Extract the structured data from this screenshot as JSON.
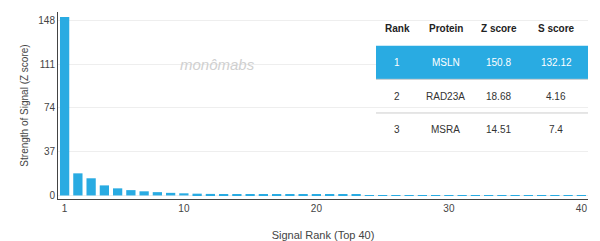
{
  "chart_data": {
    "type": "bar",
    "x": [
      1,
      2,
      3,
      4,
      5,
      6,
      7,
      8,
      9,
      10,
      11,
      12,
      13,
      14,
      15,
      16,
      17,
      18,
      19,
      20,
      21,
      22,
      23,
      24,
      25,
      26,
      27,
      28,
      29,
      30,
      31,
      32,
      33,
      34,
      35,
      36,
      37,
      38,
      39,
      40
    ],
    "values": [
      150.8,
      18.68,
      14.51,
      8.5,
      6.0,
      4.5,
      3.5,
      2.8,
      2.2,
      1.8,
      1.5,
      1.3,
      1.1,
      0.95,
      0.85,
      0.75,
      0.65,
      0.6,
      0.55,
      0.5,
      0.45,
      0.42,
      0.39,
      0.36,
      0.33,
      0.3,
      0.27,
      0.25,
      0.23,
      0.21,
      0.19,
      0.17,
      0.15,
      0.13,
      0.11,
      0.09,
      0.07,
      0.05,
      0.03,
      0.01
    ],
    "color": "#29ABE2",
    "xlabel": "Signal Rank (Top 40)",
    "ylabel": "Strength of Signal (Z score)",
    "xlim": [
      0.5,
      40.5
    ],
    "xticks": [
      1,
      10,
      20,
      30,
      40
    ],
    "ylim": [
      -3,
      155
    ],
    "yticks": [
      0,
      37,
      74,
      111,
      148
    ],
    "grid": true,
    "annotations": [
      "monômabs"
    ],
    "table": {
      "header": [
        "Rank",
        "Protein",
        "Z score",
        "S score"
      ],
      "rows": [
        [
          "1",
          "MSLN",
          "150.8",
          "132.12"
        ],
        [
          "2",
          "RAD23A",
          "18.68",
          "4.16"
        ],
        [
          "3",
          "MSRA",
          "14.51",
          "7.4"
        ]
      ]
    }
  }
}
